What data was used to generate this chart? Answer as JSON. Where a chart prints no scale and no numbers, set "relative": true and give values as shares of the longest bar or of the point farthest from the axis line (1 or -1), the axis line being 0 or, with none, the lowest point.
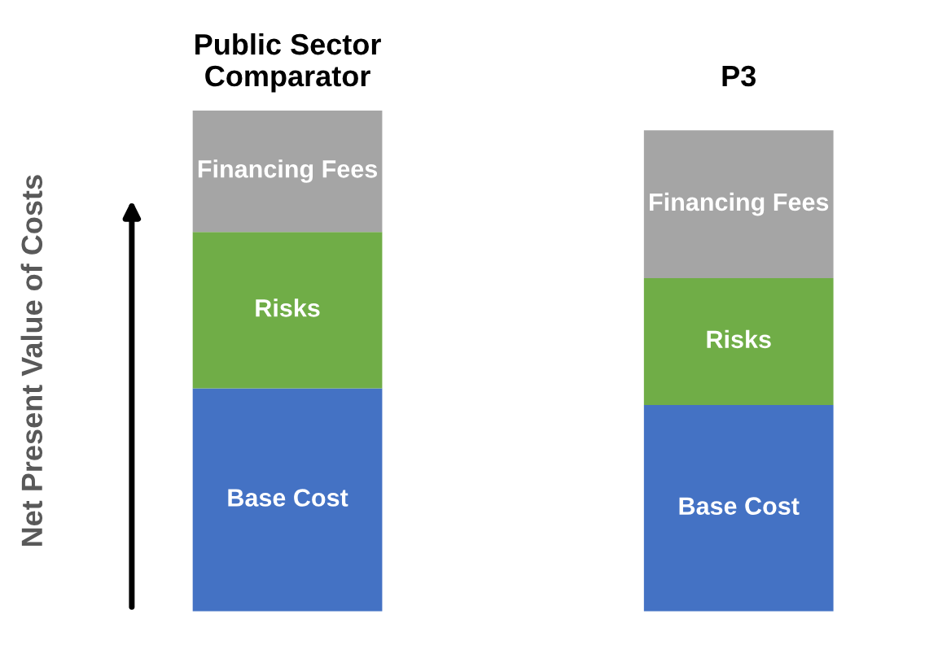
{
  "chart_data": {
    "type": "bar",
    "stacked": true,
    "relative": true,
    "categories": [
      "Public Sector\nComparator",
      "P3"
    ],
    "ylabel": "Net Present Value of Costs",
    "series": [
      {
        "name": "Base Cost",
        "color": "#4472c4",
        "values": [
          0.445,
          0.412
        ]
      },
      {
        "name": "Risks",
        "color": "#70ad47",
        "values": [
          0.312,
          0.253
        ]
      },
      {
        "name": "Financing Fees",
        "color": "#a5a5a5",
        "values": [
          0.243,
          0.295
        ]
      }
    ]
  }
}
